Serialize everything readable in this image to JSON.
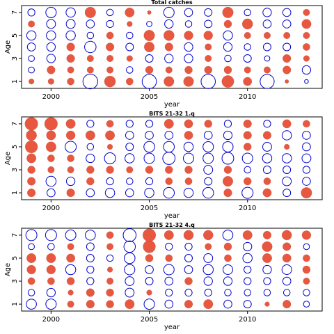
{
  "chart_data": [
    {
      "type": "scatter",
      "title": "Total catches",
      "xlabel": "year",
      "ylabel": "Age",
      "xlim": [
        1998.5,
        2013.8
      ],
      "ylim": [
        0.4,
        7.6
      ],
      "xticks": [
        2000,
        2005,
        2010
      ],
      "yticks": [
        1,
        3,
        5,
        7
      ],
      "grid": false,
      "positive_color": "#e8573f",
      "negative_color": "#0000cc",
      "years": [
        1999,
        2000,
        2001,
        2002,
        2003,
        2004,
        2005,
        2006,
        2007,
        2008,
        2009,
        2010,
        2011,
        2012,
        2013
      ],
      "ages": [
        1,
        2,
        3,
        4,
        5,
        6,
        7
      ],
      "residuals": [
        [
          0.2,
          0.25,
          0.35,
          -1.5,
          0.85,
          0.35,
          -1.4,
          0.7,
          0.7,
          -1.4,
          1.0,
          0.5,
          -1.35,
          0.1,
          -0.1
        ],
        [
          -0.25,
          0.45,
          0.3,
          0.3,
          0.3,
          -0.3,
          0.4,
          0.3,
          0.4,
          0.4,
          0.4,
          0.3,
          0.3,
          0.45,
          -0.5
        ],
        [
          -0.25,
          -0.5,
          0.45,
          0.3,
          0.3,
          0.25,
          -0.4,
          -0.5,
          -0.5,
          0.3,
          -0.3,
          -0.4,
          -0.2,
          0.45,
          0.25
        ],
        [
          -0.45,
          -0.5,
          0.45,
          -0.9,
          0.45,
          -0.4,
          0.7,
          0.45,
          -0.5,
          0.3,
          -0.5,
          -0.3,
          -0.4,
          -0.4,
          0.35
        ],
        [
          -0.6,
          -0.6,
          -0.6,
          -0.3,
          0.35,
          -0.3,
          0.8,
          0.75,
          0.55,
          0.55,
          -0.6,
          0.3,
          0.3,
          0.3,
          0.3
        ],
        [
          0.3,
          -0.55,
          -0.55,
          -0.45,
          -0.35,
          0.2,
          -0.2,
          -0.5,
          -0.3,
          -0.4,
          0.4,
          0.75,
          -0.45,
          -0.45,
          0.6
        ],
        [
          -0.35,
          -0.75,
          -0.6,
          0.8,
          -0.3,
          0.6,
          0.1,
          -0.75,
          -0.45,
          -0.4,
          0.8,
          -0.3,
          -0.5,
          -0.45,
          0.3
        ]
      ]
    },
    {
      "type": "scatter",
      "title": "BITS 21-32 1.q",
      "xlabel": "year",
      "ylabel": "Age",
      "xlim": [
        1998.5,
        2013.8
      ],
      "ylim": [
        0.4,
        7.6
      ],
      "xticks": [
        2000,
        2005,
        2010
      ],
      "yticks": [
        1,
        3,
        5,
        7
      ],
      "grid": false,
      "positive_color": "#e8573f",
      "negative_color": "#0000cc",
      "years": [
        1999,
        2000,
        2001,
        2002,
        2003,
        2004,
        2005,
        2006,
        2007,
        2008,
        2009,
        2010,
        2011,
        2012,
        2013
      ],
      "ages": [
        1,
        2,
        3,
        4,
        5,
        6,
        7
      ],
      "residuals": [
        [
          0.45,
          -0.45,
          0.45,
          -0.45,
          -0.6,
          -0.45,
          -0.6,
          -0.8,
          -0.6,
          -0.8,
          0.45,
          -0.85,
          0.5,
          -0.4,
          0.8
        ],
        [
          0.45,
          -0.7,
          -0.5,
          0.4,
          -0.35,
          -0.3,
          -0.35,
          0.35,
          0.35,
          -0.4,
          0.7,
          0.4,
          0.35,
          -0.55,
          -0.45
        ],
        [
          0.4,
          0.3,
          0.3,
          0.4,
          0.4,
          0.3,
          0.4,
          0.4,
          0.4,
          -0.55,
          0.4,
          -0.3,
          -0.4,
          -0.4,
          -0.35
        ],
        [
          0.6,
          0.35,
          0.35,
          -0.5,
          -0.85,
          -0.6,
          -0.75,
          -1.05,
          -0.75,
          -0.75,
          -0.95,
          -0.75,
          -0.6,
          -0.6,
          -0.55
        ],
        [
          1.05,
          0.7,
          -0.85,
          -0.3,
          0.2,
          -0.4,
          -0.8,
          -0.8,
          -0.6,
          -0.75,
          -0.75,
          0.4,
          -0.55,
          0.2,
          -0.45
        ],
        [
          0.75,
          0.6,
          0.55,
          0.6,
          0.6,
          -0.45,
          -0.45,
          -0.45,
          0.5,
          -0.45,
          -0.5,
          0.45,
          0.45,
          -0.6,
          -0.45
        ],
        [
          1.15,
          1.15,
          0.6,
          -0.35,
          0.35,
          -0.35,
          -0.35,
          0.6,
          0.5,
          0.4,
          -0.35,
          0.45,
          -0.35,
          0.5,
          0.35
        ]
      ]
    },
    {
      "type": "scatter",
      "title": "BITS 21-32 4.q",
      "xlabel": "year",
      "ylabel": "Age",
      "xlim": [
        1998.5,
        2013.8
      ],
      "ylim": [
        0.4,
        7.6
      ],
      "xticks": [
        2000,
        2005,
        2010
      ],
      "yticks": [
        1,
        3,
        5,
        7
      ],
      "grid": false,
      "positive_color": "#e8573f",
      "negative_color": "#0000cc",
      "years": [
        1999,
        2000,
        2001,
        2002,
        2003,
        2004,
        2005,
        2006,
        2007,
        2008,
        2009,
        2010,
        2011,
        2012,
        2013
      ],
      "ages": [
        1,
        2,
        3,
        4,
        5,
        6,
        7
      ],
      "residuals": [
        [
          -0.7,
          -0.75,
          0.3,
          0.45,
          0.4,
          0.6,
          -0.75,
          -0.45,
          0.45,
          0.6,
          -0.45,
          -0.4,
          0.15,
          0.45,
          -0.25
        ],
        [
          -0.3,
          -0.5,
          0.2,
          0.45,
          0.4,
          -0.55,
          0.2,
          -0.35,
          -0.35,
          -0.35,
          -0.3,
          -0.3,
          -0.3,
          -0.3,
          -0.3
        ],
        [
          0.35,
          0.35,
          0.4,
          -0.35,
          0.3,
          -0.55,
          -0.4,
          -0.45,
          0.4,
          -0.5,
          -0.5,
          -0.35,
          -0.35,
          -0.45,
          0.3
        ],
        [
          0.55,
          0.55,
          -0.7,
          -0.35,
          0.2,
          -0.75,
          -0.45,
          -0.75,
          -0.45,
          -0.7,
          -0.65,
          -0.35,
          -0.5,
          -0.65,
          0.4
        ],
        [
          0.6,
          0.6,
          0.5,
          -0.4,
          -0.3,
          -0.8,
          0.4,
          0.35,
          -0.4,
          -0.55,
          0.35,
          -0.6,
          0.6,
          0.5,
          0.35
        ],
        [
          -0.25,
          -0.3,
          0.3,
          -0.4,
          0.3,
          -0.9,
          1.05,
          -0.35,
          -0.35,
          0.3,
          0.4,
          -0.5,
          0.7,
          0.45,
          -0.25
        ],
        [
          -0.85,
          -0.85,
          -0.75,
          -0.7,
          0.35,
          -1.15,
          1.15,
          0.6,
          0.65,
          0.65,
          -0.7,
          0.6,
          0.45,
          0.65,
          0.55
        ]
      ]
    }
  ]
}
